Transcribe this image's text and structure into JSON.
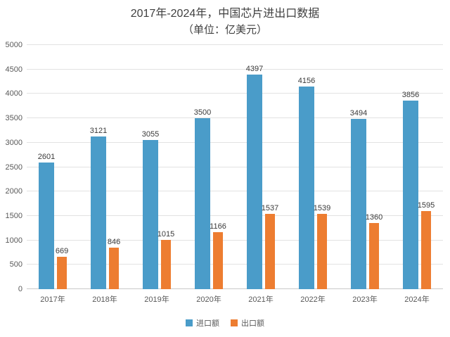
{
  "title": "2017年-2024年，中国芯片进出口数据",
  "subtitle": "（单位：亿美元）",
  "chart_data": {
    "type": "bar",
    "title": "2017年-2024年，中国芯片进出口数据",
    "subtitle": "（单位：亿美元）",
    "categories": [
      "2017年",
      "2018年",
      "2019年",
      "2020年",
      "2021年",
      "2022年",
      "2023年",
      "2024年"
    ],
    "series": [
      {
        "name": "进口额",
        "color": "#4A9CC9",
        "values": [
          2601,
          3121,
          3055,
          3500,
          4397,
          4156,
          3494,
          3856
        ]
      },
      {
        "name": "出口额",
        "color": "#ED7D31",
        "values": [
          669,
          846,
          1015,
          1166,
          1537,
          1539,
          1360,
          1595
        ]
      }
    ],
    "xlabel": "",
    "ylabel": "",
    "ylim": [
      0,
      5000
    ],
    "ytick_step": 500,
    "grid": true,
    "legend_position": "bottom"
  }
}
